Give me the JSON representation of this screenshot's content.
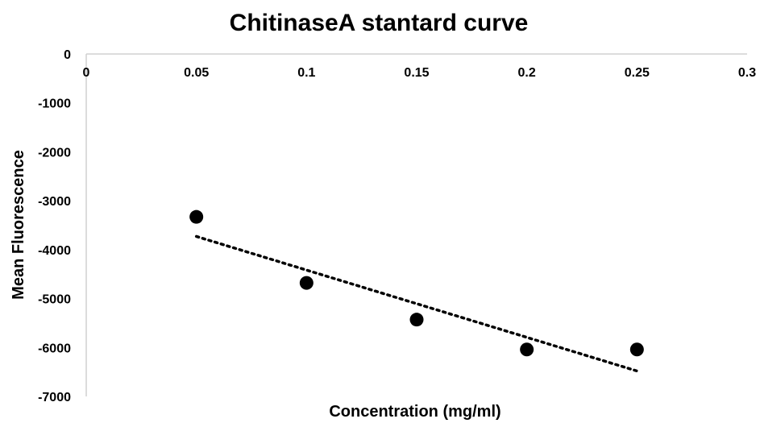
{
  "chart_data": {
    "type": "scatter",
    "title": "ChitinaseA stantard curve",
    "xlabel": "Concentration (mg/ml)",
    "ylabel": "Mean Fluorescence",
    "xlim": [
      0,
      0.3
    ],
    "ylim": [
      -7000,
      0
    ],
    "x_ticks": [
      "0",
      "0.05",
      "0.1",
      "0.15",
      "0.2",
      "0.25",
      "0.3"
    ],
    "y_ticks": [
      "0",
      "-1000",
      "-2000",
      "-3000",
      "-4000",
      "-5000",
      "-6000",
      "-7000"
    ],
    "x_axis_position": "top",
    "grid": false,
    "legend": "none",
    "series": [
      {
        "x": [
          0.05,
          0.1,
          0.15,
          0.2,
          0.25
        ],
        "y": [
          -3330,
          -4680,
          -5430,
          -6040,
          -6040
        ],
        "marker_color": "#000000"
      }
    ],
    "trendline": {
      "type": "linear",
      "style": "dotted",
      "x": [
        0.05,
        0.25
      ],
      "y": [
        -3730,
        -6480
      ]
    }
  }
}
